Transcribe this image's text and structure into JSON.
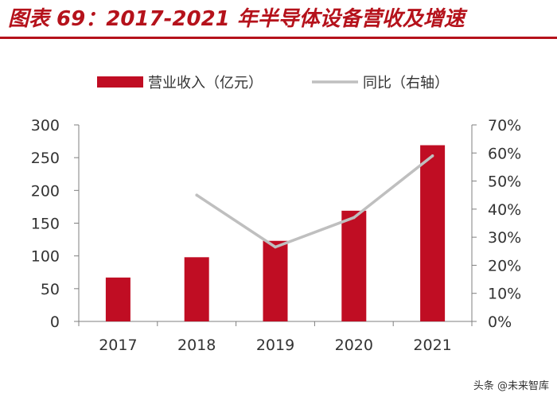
{
  "header": {
    "title": "图表 69：2017-2021 年半导体设备营收及增速"
  },
  "colors": {
    "accent": "#b5121b",
    "bar": "#c00d23",
    "line": "#bfbfbf",
    "axis": "#7f7f7f",
    "text": "#333333"
  },
  "chart_data": {
    "type": "bar",
    "title": "",
    "categories": [
      "2017",
      "2018",
      "2019",
      "2020",
      "2021"
    ],
    "series": [
      {
        "name": "营业收入（亿元）",
        "type": "bar",
        "axis": "left",
        "values": [
          67,
          98,
          123,
          169,
          269
        ]
      },
      {
        "name": "同比（右轴）",
        "type": "line",
        "axis": "right",
        "values": [
          null,
          0.45,
          0.265,
          0.37,
          0.59
        ]
      }
    ],
    "y_left": {
      "min": 0,
      "max": 300,
      "ticks": [
        0,
        50,
        100,
        150,
        200,
        250,
        300
      ],
      "tick_labels": [
        "0",
        "50",
        "100",
        "150",
        "200",
        "250",
        "300"
      ]
    },
    "y_right": {
      "min": 0,
      "max": 0.7,
      "ticks": [
        0,
        0.1,
        0.2,
        0.3,
        0.4,
        0.5,
        0.6,
        0.7
      ],
      "tick_labels": [
        "0%",
        "10%",
        "20%",
        "30%",
        "40%",
        "50%",
        "60%",
        "70%"
      ]
    },
    "grid": false,
    "legend_position": "top"
  },
  "watermark": "头条 @未来智库"
}
